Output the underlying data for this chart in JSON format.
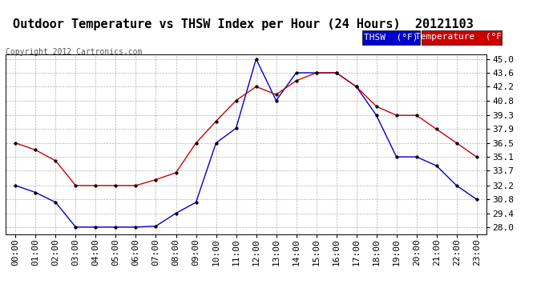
{
  "title": "Outdoor Temperature vs THSW Index per Hour (24 Hours)  20121103",
  "copyright": "Copyright 2012 Cartronics.com",
  "hours": [
    "00:00",
    "01:00",
    "02:00",
    "03:00",
    "04:00",
    "05:00",
    "06:00",
    "07:00",
    "08:00",
    "09:00",
    "10:00",
    "11:00",
    "12:00",
    "13:00",
    "14:00",
    "15:00",
    "16:00",
    "17:00",
    "18:00",
    "19:00",
    "20:00",
    "21:00",
    "22:00",
    "23:00"
  ],
  "thsw": [
    32.2,
    31.5,
    30.5,
    28.0,
    28.0,
    28.0,
    28.0,
    28.1,
    29.4,
    30.5,
    36.5,
    38.0,
    45.0,
    40.8,
    43.6,
    43.6,
    43.6,
    42.2,
    39.3,
    35.1,
    35.1,
    34.2,
    32.2,
    30.8
  ],
  "temp": [
    36.5,
    35.8,
    34.7,
    32.2,
    32.2,
    32.2,
    32.2,
    32.8,
    33.5,
    36.5,
    38.7,
    40.8,
    42.2,
    41.4,
    42.8,
    43.6,
    43.6,
    42.2,
    40.2,
    39.3,
    39.3,
    37.9,
    36.5,
    35.1
  ],
  "thsw_color": "#0000cc",
  "temp_color": "#cc0000",
  "bg_color": "#ffffff",
  "grid_color": "#aaaaaa",
  "yticks": [
    28.0,
    29.4,
    30.8,
    32.2,
    33.7,
    35.1,
    36.5,
    37.9,
    39.3,
    40.8,
    42.2,
    43.6,
    45.0
  ],
  "ylim": [
    27.3,
    45.5
  ],
  "title_fontsize": 11,
  "tick_fontsize": 8,
  "copyright_fontsize": 7,
  "legend_fontsize": 8
}
